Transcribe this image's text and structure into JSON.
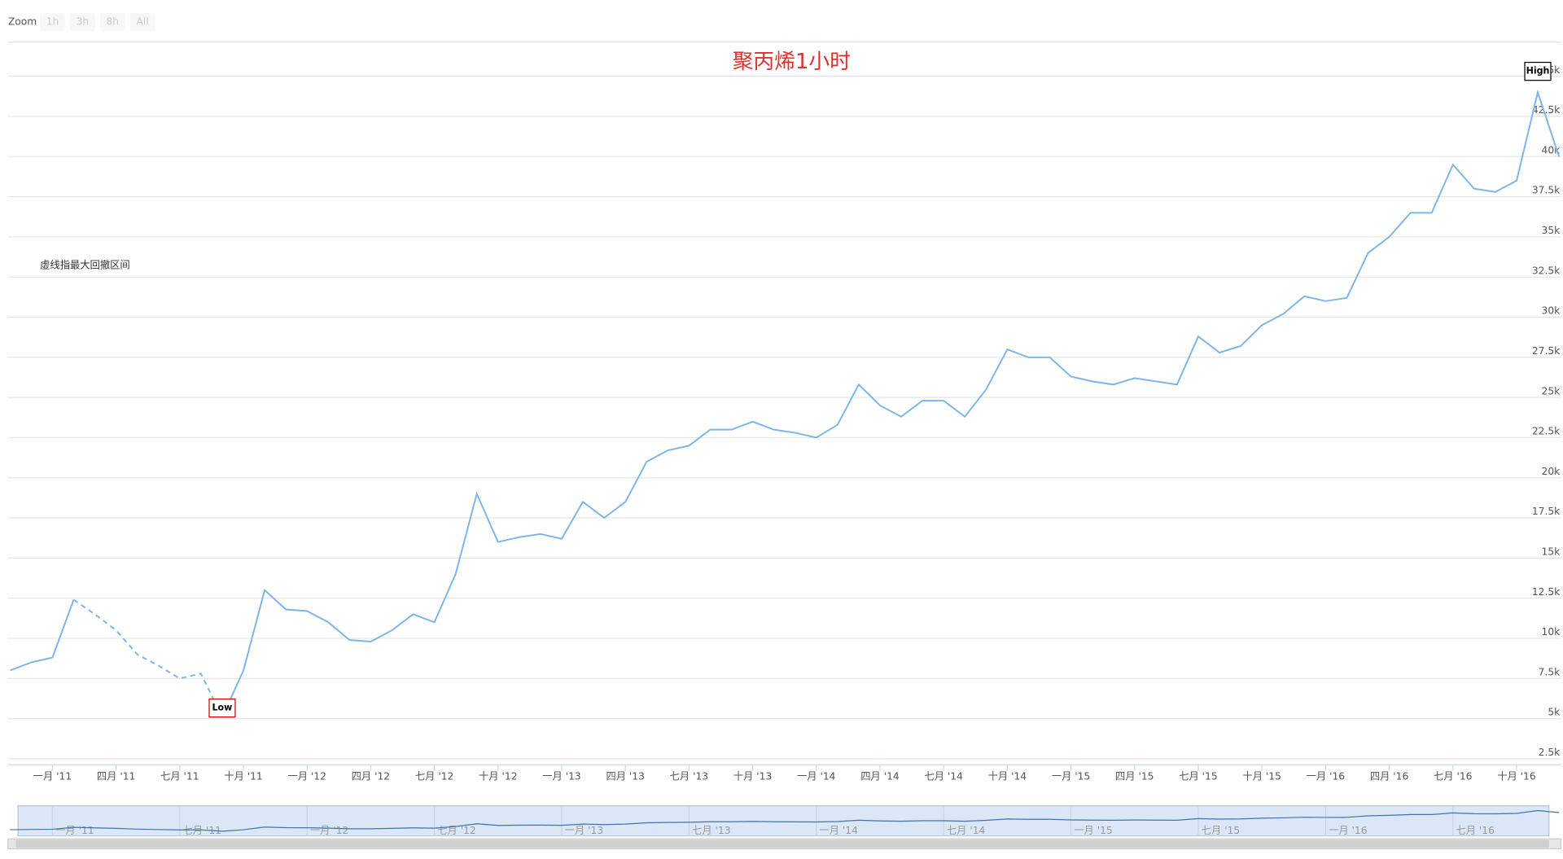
{
  "chart_data": {
    "type": "line",
    "title": "聚丙烯1小时",
    "annotation": "虚线指最大回撤区间",
    "zoom": {
      "label": "Zoom",
      "buttons": [
        "1h",
        "3h",
        "8h",
        "All"
      ]
    },
    "x": [
      "2010-11",
      "2010-12",
      "2011-01",
      "2011-02",
      "2011-03",
      "2011-04",
      "2011-05",
      "2011-06",
      "2011-07",
      "2011-08",
      "2011-09",
      "2011-10",
      "2011-11",
      "2011-12",
      "2012-01",
      "2012-02",
      "2012-03",
      "2012-04",
      "2012-05",
      "2012-06",
      "2012-07",
      "2012-08",
      "2012-09",
      "2012-10",
      "2012-11",
      "2012-12",
      "2013-01",
      "2013-02",
      "2013-03",
      "2013-04",
      "2013-05",
      "2013-06",
      "2013-07",
      "2013-08",
      "2013-09",
      "2013-10",
      "2013-11",
      "2013-12",
      "2014-01",
      "2014-02",
      "2014-03",
      "2014-04",
      "2014-05",
      "2014-06",
      "2014-07",
      "2014-08",
      "2014-09",
      "2014-10",
      "2014-11",
      "2014-12",
      "2015-01",
      "2015-02",
      "2015-03",
      "2015-04",
      "2015-05",
      "2015-06",
      "2015-07",
      "2015-08",
      "2015-09",
      "2015-10",
      "2015-11",
      "2015-12",
      "2016-01",
      "2016-02",
      "2016-03",
      "2016-04",
      "2016-05",
      "2016-06",
      "2016-07",
      "2016-08",
      "2016-09",
      "2016-10",
      "2016-11",
      "2016-12"
    ],
    "series": [
      {
        "color": "#7cb5ec",
        "values": [
          8000,
          8500,
          8800,
          12400,
          11500,
          10500,
          9000,
          8300,
          7500,
          7800,
          5100,
          8000,
          13000,
          11800,
          11700,
          11000,
          9900,
          9800,
          10500,
          11500,
          11000,
          14000,
          19000,
          16000,
          16300,
          16500,
          16200,
          18500,
          17500,
          18500,
          21000,
          21700,
          22000,
          23000,
          23000,
          23500,
          23000,
          22800,
          22500,
          23300,
          25800,
          24500,
          23800,
          24800,
          24800,
          23800,
          25500,
          28000,
          27500,
          27500,
          26300,
          26000,
          25800,
          26200,
          26000,
          25800,
          28800,
          27800,
          28200,
          29500,
          30200,
          31300,
          31000,
          31200,
          34000,
          35000,
          36500,
          36500,
          39500,
          38000,
          37800,
          38500,
          44000,
          40000
        ]
      }
    ],
    "dashed_range": [
      "2011-02",
      "2011-09"
    ],
    "flags": [
      {
        "x": "2016-11",
        "label": "High"
      },
      {
        "x": "2011-09",
        "label": "Low"
      }
    ],
    "xlim": [
      "2010-11",
      "2016-12"
    ],
    "xticks": [
      {
        "value": "2011-01",
        "label": "一月 '11"
      },
      {
        "value": "2011-04",
        "label": "四月 '11"
      },
      {
        "value": "2011-07",
        "label": "七月 '11"
      },
      {
        "value": "2011-10",
        "label": "十月 '11"
      },
      {
        "value": "2012-01",
        "label": "一月 '12"
      },
      {
        "value": "2012-04",
        "label": "四月 '12"
      },
      {
        "value": "2012-07",
        "label": "七月 '12"
      },
      {
        "value": "2012-10",
        "label": "十月 '12"
      },
      {
        "value": "2013-01",
        "label": "一月 '13"
      },
      {
        "value": "2013-04",
        "label": "四月 '13"
      },
      {
        "value": "2013-07",
        "label": "七月 '13"
      },
      {
        "value": "2013-10",
        "label": "十月 '13"
      },
      {
        "value": "2014-01",
        "label": "一月 '14"
      },
      {
        "value": "2014-04",
        "label": "四月 '14"
      },
      {
        "value": "2014-07",
        "label": "七月 '14"
      },
      {
        "value": "2014-10",
        "label": "十月 '14"
      },
      {
        "value": "2015-01",
        "label": "一月 '15"
      },
      {
        "value": "2015-04",
        "label": "四月 '15"
      },
      {
        "value": "2015-07",
        "label": "七月 '15"
      },
      {
        "value": "2015-10",
        "label": "十月 '15"
      },
      {
        "value": "2016-01",
        "label": "一月 '16"
      },
      {
        "value": "2016-04",
        "label": "四月 '16"
      },
      {
        "value": "2016-07",
        "label": "七月 '16"
      },
      {
        "value": "2016-10",
        "label": "十月 '16"
      }
    ],
    "ylim": [
      2125,
      47125
    ],
    "yticks": [
      {
        "value": 2500,
        "label": "2.5k"
      },
      {
        "value": 5000,
        "label": "5k"
      },
      {
        "value": 7500,
        "label": "7.5k"
      },
      {
        "value": 10000,
        "label": "10k"
      },
      {
        "value": 12500,
        "label": "12.5k"
      },
      {
        "value": 15000,
        "label": "15k"
      },
      {
        "value": 17500,
        "label": "17.5k"
      },
      {
        "value": 20000,
        "label": "20k"
      },
      {
        "value": 22500,
        "label": "22.5k"
      },
      {
        "value": 25000,
        "label": "25k"
      },
      {
        "value": 27500,
        "label": "27.5k"
      },
      {
        "value": 30000,
        "label": "30k"
      },
      {
        "value": 32500,
        "label": "32.5k"
      },
      {
        "value": 35000,
        "label": "35k"
      },
      {
        "value": 37500,
        "label": "37.5k"
      },
      {
        "value": 40000,
        "label": "40k"
      },
      {
        "value": 42500,
        "label": "42.5k"
      },
      {
        "value": 45000,
        "label": "45k"
      }
    ],
    "grid": true
  }
}
